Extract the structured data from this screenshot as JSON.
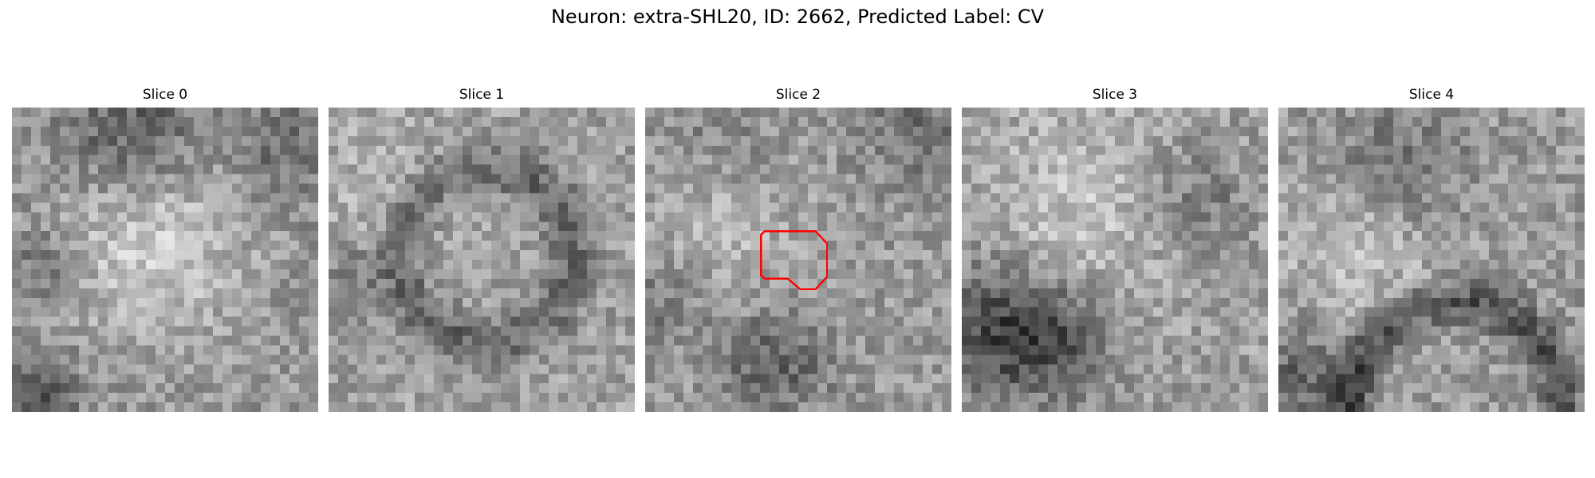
{
  "figure": {
    "title": "Neuron: extra-SHL20, ID: 2662, Predicted Label: CV"
  },
  "panels": [
    {
      "title": "Slice 0"
    },
    {
      "title": "Slice 1"
    },
    {
      "title": "Slice 2",
      "has_outline": true
    },
    {
      "title": "Slice 3"
    },
    {
      "title": "Slice 4"
    }
  ],
  "image": {
    "colormap": "grayscale",
    "grid_size": 32
  },
  "outline": {
    "color": "#ff0000",
    "panel_index": 2
  }
}
